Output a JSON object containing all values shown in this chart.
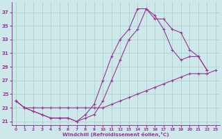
{
  "xlabel": "Windchill (Refroidissement éolien,°C)",
  "background_color": "#cce8e8",
  "grid_color": "#aacccc",
  "line_color": "#993399",
  "xlim": [
    -0.5,
    23.5
  ],
  "ylim": [
    20.5,
    38.5
  ],
  "yticks": [
    21,
    23,
    25,
    27,
    29,
    31,
    33,
    35,
    37
  ],
  "xticks": [
    0,
    1,
    2,
    3,
    4,
    5,
    6,
    7,
    8,
    9,
    10,
    11,
    12,
    13,
    14,
    15,
    16,
    17,
    18,
    19,
    20,
    21,
    22,
    23
  ],
  "s1_x": [
    0,
    1,
    2,
    3,
    4,
    5,
    6,
    7,
    8,
    9,
    10,
    11,
    12,
    13,
    14,
    15,
    16,
    17,
    18,
    19,
    20,
    21,
    22
  ],
  "s1_y": [
    24.0,
    23.0,
    22.5,
    22.0,
    21.5,
    21.5,
    21.5,
    21.0,
    22.0,
    23.5,
    27.0,
    30.5,
    33.0,
    34.5,
    37.5,
    37.5,
    36.5,
    34.5,
    31.5,
    30.0,
    30.5,
    30.5,
    28.5
  ],
  "s2_x": [
    0,
    1,
    2,
    3,
    4,
    5,
    6,
    7,
    8,
    9,
    10,
    11,
    12,
    13,
    14,
    15,
    16,
    17,
    18,
    19,
    20,
    21,
    22,
    23
  ],
  "s2_y": [
    24.0,
    23.0,
    23.0,
    23.0,
    23.0,
    23.0,
    23.0,
    23.0,
    23.0,
    23.0,
    23.0,
    23.5,
    24.0,
    24.5,
    25.0,
    25.5,
    26.0,
    26.5,
    27.0,
    27.5,
    28.0,
    28.0,
    28.0,
    28.5
  ],
  "s3_x": [
    0,
    1,
    2,
    3,
    4,
    5,
    6,
    7,
    8,
    9,
    10,
    11,
    12,
    13,
    14,
    15,
    16,
    17,
    18,
    19,
    20,
    21,
    22
  ],
  "s3_y": [
    24.0,
    23.0,
    22.5,
    22.0,
    21.5,
    21.5,
    21.5,
    21.0,
    21.5,
    22.0,
    24.0,
    27.0,
    30.0,
    33.0,
    34.5,
    37.5,
    36.0,
    36.0,
    34.5,
    34.0,
    31.5,
    30.5,
    28.5
  ]
}
